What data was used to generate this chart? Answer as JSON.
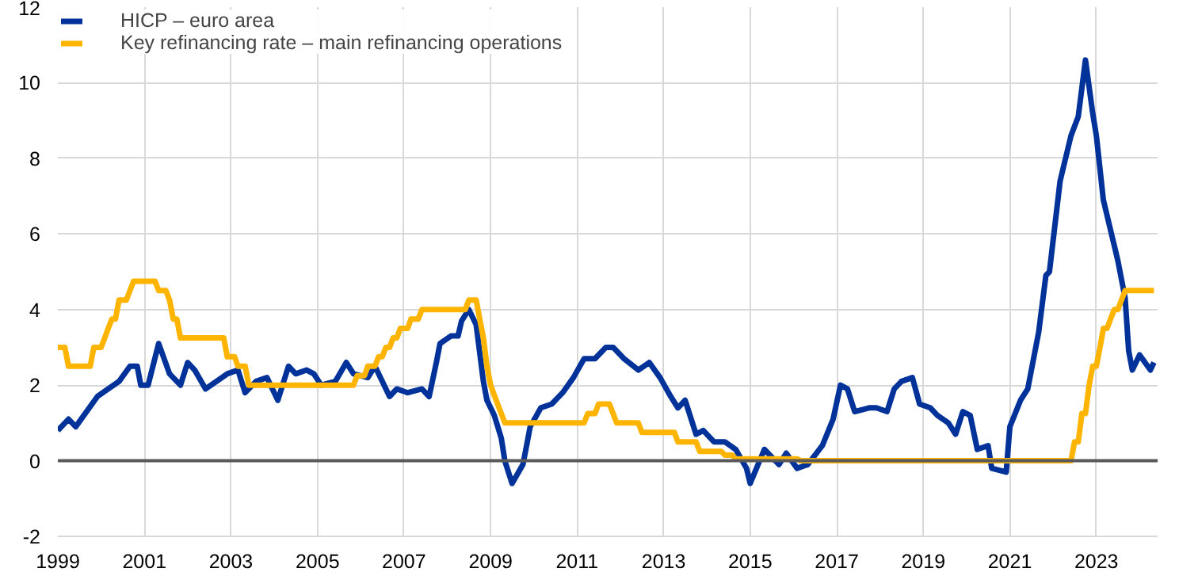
{
  "chart_data": {
    "type": "line",
    "xlim": [
      "1999-01",
      "2024-06"
    ],
    "xticks": [
      "1999",
      "2001",
      "2003",
      "2005",
      "2007",
      "2009",
      "2011",
      "2013",
      "2015",
      "2017",
      "2019",
      "2021",
      "2023"
    ],
    "ylim": [
      -2,
      12
    ],
    "yticks": [
      -2,
      0,
      2,
      4,
      6,
      8,
      10,
      12
    ],
    "grid": true,
    "legend": "top left",
    "line_style": "solid",
    "marker": "none",
    "ref_lines": [
      {
        "axis": "y",
        "value": 0,
        "color": "#595959"
      }
    ],
    "series": [
      {
        "name": "HICP – euro area",
        "color": "#003299",
        "x": [
          "1999-01",
          "1999-04",
          "1999-06",
          "1999-12",
          "2000-03",
          "2000-06",
          "2000-09",
          "2000-11",
          "2000-12",
          "2001-02",
          "2001-05",
          "2001-08",
          "2001-11",
          "2002-01",
          "2002-03",
          "2002-06",
          "2002-09",
          "2002-12",
          "2003-03",
          "2003-05",
          "2003-08",
          "2003-11",
          "2004-02",
          "2004-05",
          "2004-07",
          "2004-10",
          "2004-12",
          "2005-02",
          "2005-06",
          "2005-09",
          "2005-11",
          "2006-03",
          "2006-05",
          "2006-09",
          "2006-11",
          "2007-02",
          "2007-06",
          "2007-08",
          "2007-10",
          "2007-11",
          "2008-02",
          "2008-04",
          "2008-05",
          "2008-07",
          "2008-09",
          "2008-11",
          "2008-12",
          "2009-02",
          "2009-04",
          "2009-05",
          "2009-07",
          "2009-10",
          "2009-12",
          "2010-03",
          "2010-06",
          "2010-09",
          "2010-12",
          "2011-03",
          "2011-06",
          "2011-09",
          "2011-11",
          "2012-02",
          "2012-06",
          "2012-09",
          "2012-12",
          "2013-03",
          "2013-05",
          "2013-07",
          "2013-10",
          "2013-12",
          "2014-03",
          "2014-06",
          "2014-09",
          "2014-12",
          "2015-01",
          "2015-05",
          "2015-09",
          "2015-11",
          "2016-02",
          "2016-05",
          "2016-09",
          "2016-12",
          "2017-02",
          "2017-04",
          "2017-06",
          "2017-10",
          "2017-12",
          "2018-03",
          "2018-05",
          "2018-07",
          "2018-10",
          "2018-12",
          "2019-03",
          "2019-05",
          "2019-08",
          "2019-10",
          "2019-12",
          "2020-02",
          "2020-04",
          "2020-07",
          "2020-08",
          "2020-12",
          "2021-01",
          "2021-04",
          "2021-06",
          "2021-09",
          "2021-11",
          "2021-12",
          "2022-03",
          "2022-06",
          "2022-08",
          "2022-10",
          "2022-12",
          "2023-01",
          "2023-03",
          "2023-05",
          "2023-07",
          "2023-09",
          "2023-10",
          "2023-11",
          "2024-01",
          "2024-04",
          "2024-05"
        ],
        "values": [
          0.8,
          1.1,
          0.9,
          1.7,
          1.9,
          2.1,
          2.5,
          2.5,
          2.0,
          2.0,
          3.1,
          2.3,
          2.0,
          2.6,
          2.4,
          1.9,
          2.1,
          2.3,
          2.4,
          1.8,
          2.1,
          2.2,
          1.6,
          2.5,
          2.3,
          2.4,
          2.3,
          2.0,
          2.1,
          2.6,
          2.3,
          2.2,
          2.5,
          1.7,
          1.9,
          1.8,
          1.9,
          1.7,
          2.6,
          3.1,
          3.3,
          3.3,
          3.7,
          4.0,
          3.6,
          2.1,
          1.6,
          1.2,
          0.6,
          0.0,
          -0.6,
          -0.1,
          0.9,
          1.4,
          1.5,
          1.8,
          2.2,
          2.7,
          2.7,
          3.0,
          3.0,
          2.7,
          2.4,
          2.6,
          2.2,
          1.7,
          1.4,
          1.6,
          0.7,
          0.8,
          0.5,
          0.5,
          0.3,
          -0.2,
          -0.6,
          0.3,
          -0.1,
          0.2,
          -0.2,
          -0.1,
          0.4,
          1.1,
          2.0,
          1.9,
          1.3,
          1.4,
          1.4,
          1.3,
          1.9,
          2.1,
          2.2,
          1.5,
          1.4,
          1.2,
          1.0,
          0.7,
          1.3,
          1.2,
          0.3,
          0.4,
          -0.2,
          -0.3,
          0.9,
          1.6,
          1.9,
          3.4,
          4.9,
          5.0,
          7.4,
          8.6,
          9.1,
          10.6,
          9.2,
          8.6,
          6.9,
          6.1,
          5.3,
          4.3,
          2.9,
          2.4,
          2.8,
          2.4,
          2.6
        ]
      },
      {
        "name": "Key refinancing rate – main refinancing operations",
        "color": "#ffb400",
        "x": [
          "1999-01",
          "1999-03",
          "1999-04",
          "1999-10",
          "1999-11",
          "2000-01",
          "2000-02",
          "2000-03",
          "2000-04",
          "2000-05",
          "2000-06",
          "2000-08",
          "2000-09",
          "2000-10",
          "2001-04",
          "2001-05",
          "2001-07",
          "2001-08",
          "2001-09",
          "2001-10",
          "2001-11",
          "2002-11",
          "2002-12",
          "2003-02",
          "2003-03",
          "2003-05",
          "2003-06",
          "2005-11",
          "2005-12",
          "2006-02",
          "2006-03",
          "2006-05",
          "2006-06",
          "2006-07",
          "2006-08",
          "2006-09",
          "2006-10",
          "2006-11",
          "2006-12",
          "2007-02",
          "2007-03",
          "2007-05",
          "2007-06",
          "2008-06",
          "2008-07",
          "2008-09",
          "2008-10",
          "2008-11",
          "2008-12",
          "2009-01",
          "2009-03",
          "2009-04",
          "2009-05",
          "2011-03",
          "2011-04",
          "2011-06",
          "2011-07",
          "2011-10",
          "2011-11",
          "2011-12",
          "2012-06",
          "2012-07",
          "2013-04",
          "2013-05",
          "2013-10",
          "2013-11",
          "2014-05",
          "2014-06",
          "2014-08",
          "2014-09",
          "2016-02",
          "2016-03",
          "2022-06",
          "2022-07",
          "2022-08",
          "2022-09",
          "2022-10",
          "2022-11",
          "2022-12",
          "2023-01",
          "2023-02",
          "2023-03",
          "2023-04",
          "2023-05",
          "2023-06",
          "2023-07",
          "2023-08",
          "2023-09",
          "2024-05"
        ],
        "values": [
          3.0,
          3.0,
          2.5,
          2.5,
          3.0,
          3.0,
          3.25,
          3.5,
          3.75,
          3.75,
          4.25,
          4.25,
          4.5,
          4.75,
          4.75,
          4.5,
          4.5,
          4.25,
          3.75,
          3.75,
          3.25,
          3.25,
          2.75,
          2.75,
          2.5,
          2.5,
          2.0,
          2.0,
          2.25,
          2.25,
          2.5,
          2.5,
          2.75,
          2.75,
          3.0,
          3.0,
          3.25,
          3.25,
          3.5,
          3.5,
          3.75,
          3.75,
          4.0,
          4.0,
          4.25,
          4.25,
          3.75,
          3.25,
          2.5,
          2.0,
          1.5,
          1.25,
          1.0,
          1.0,
          1.25,
          1.25,
          1.5,
          1.5,
          1.25,
          1.0,
          1.0,
          0.75,
          0.75,
          0.5,
          0.5,
          0.25,
          0.25,
          0.15,
          0.15,
          0.05,
          0.05,
          0.0,
          0.0,
          0.5,
          0.5,
          1.25,
          1.25,
          2.0,
          2.5,
          2.5,
          3.0,
          3.5,
          3.5,
          3.75,
          4.0,
          4.0,
          4.25,
          4.5,
          4.5
        ]
      }
    ]
  }
}
